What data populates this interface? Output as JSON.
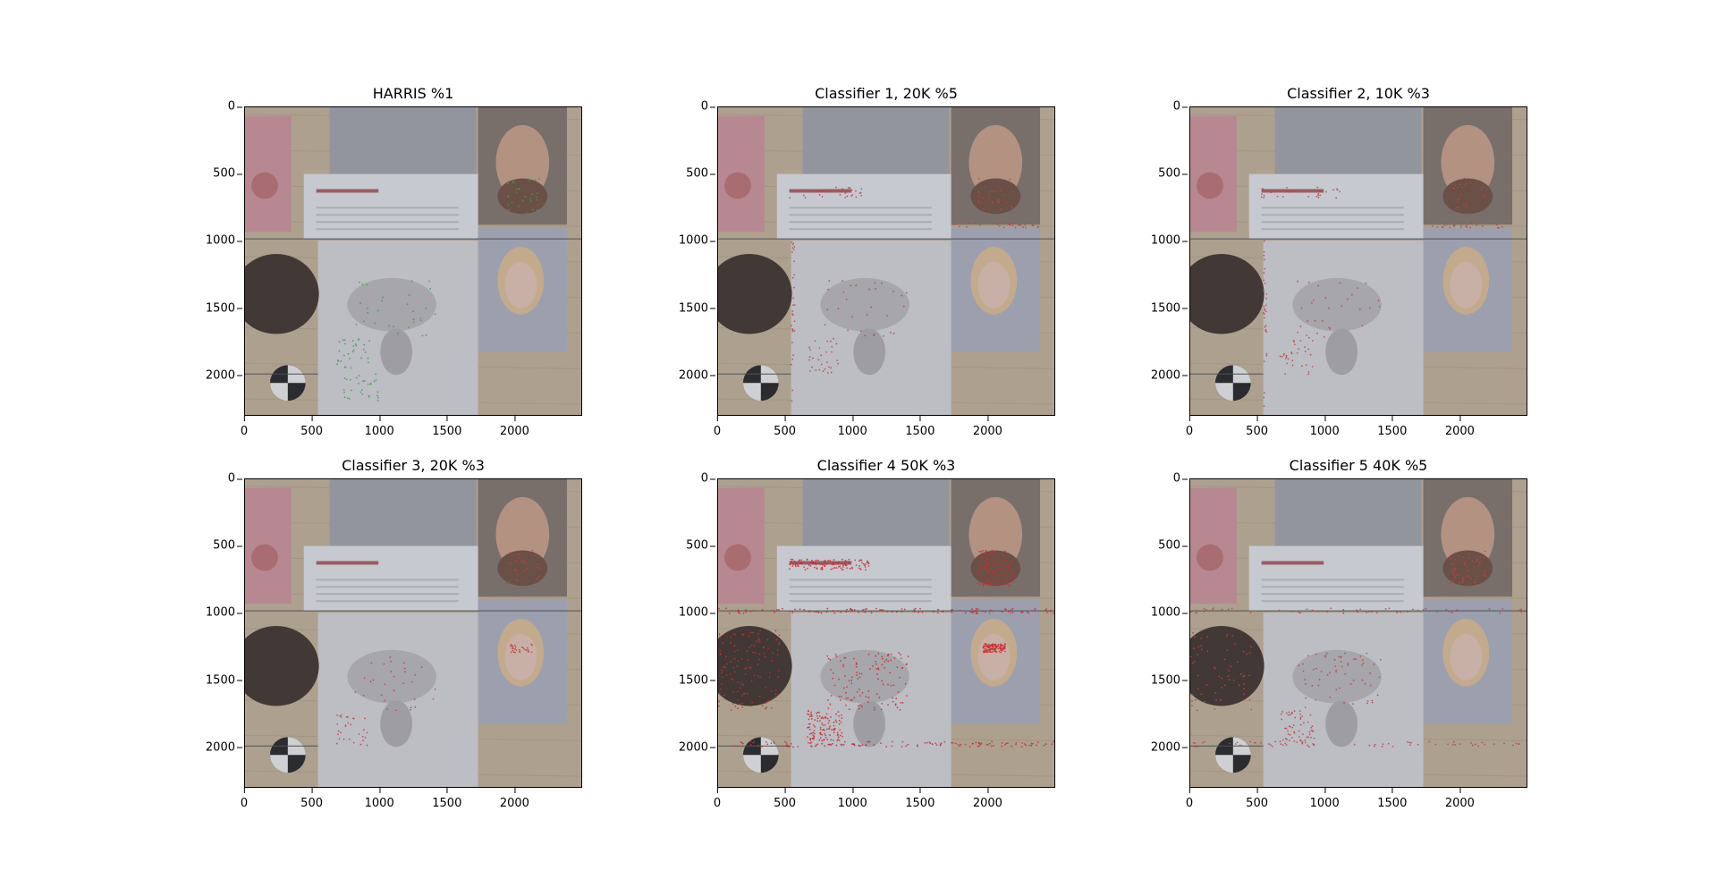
{
  "figure": {
    "panels": [
      {
        "title": "HARRIS %1",
        "marker_color": "#3fa33f",
        "density": "low",
        "regions": [
          "beard",
          "flowers",
          "grapes"
        ]
      },
      {
        "title": "Classifier 1, 20K %5",
        "marker_color": "#d23a3a",
        "density": "low",
        "regions": [
          "beard",
          "flowers",
          "text",
          "border"
        ]
      },
      {
        "title": "Classifier 2, 10K %3",
        "marker_color": "#d23a3a",
        "density": "low",
        "regions": [
          "beard",
          "flowers",
          "text",
          "border"
        ]
      },
      {
        "title": "Classifier 3, 20K %3",
        "marker_color": "#d23a3a",
        "density": "low",
        "regions": [
          "beard",
          "flowers",
          "eyes"
        ]
      },
      {
        "title": "Classifier 4 50K %3",
        "marker_color": "#e02020",
        "density": "high",
        "regions": [
          "beard",
          "flowers",
          "hair",
          "lines",
          "text",
          "eyes"
        ]
      },
      {
        "title": "Classifier 5 40K %5",
        "marker_color": "#d23a3a",
        "density": "medium",
        "regions": [
          "beard",
          "flowers",
          "hair",
          "lines"
        ]
      }
    ],
    "x_ticks": [
      "0",
      "500",
      "1000",
      "1500",
      "2000"
    ],
    "y_ticks": [
      "0",
      "500",
      "1000",
      "1500",
      "2000"
    ],
    "x_range": [
      0,
      2500
    ],
    "y_range": [
      0,
      2300
    ]
  }
}
